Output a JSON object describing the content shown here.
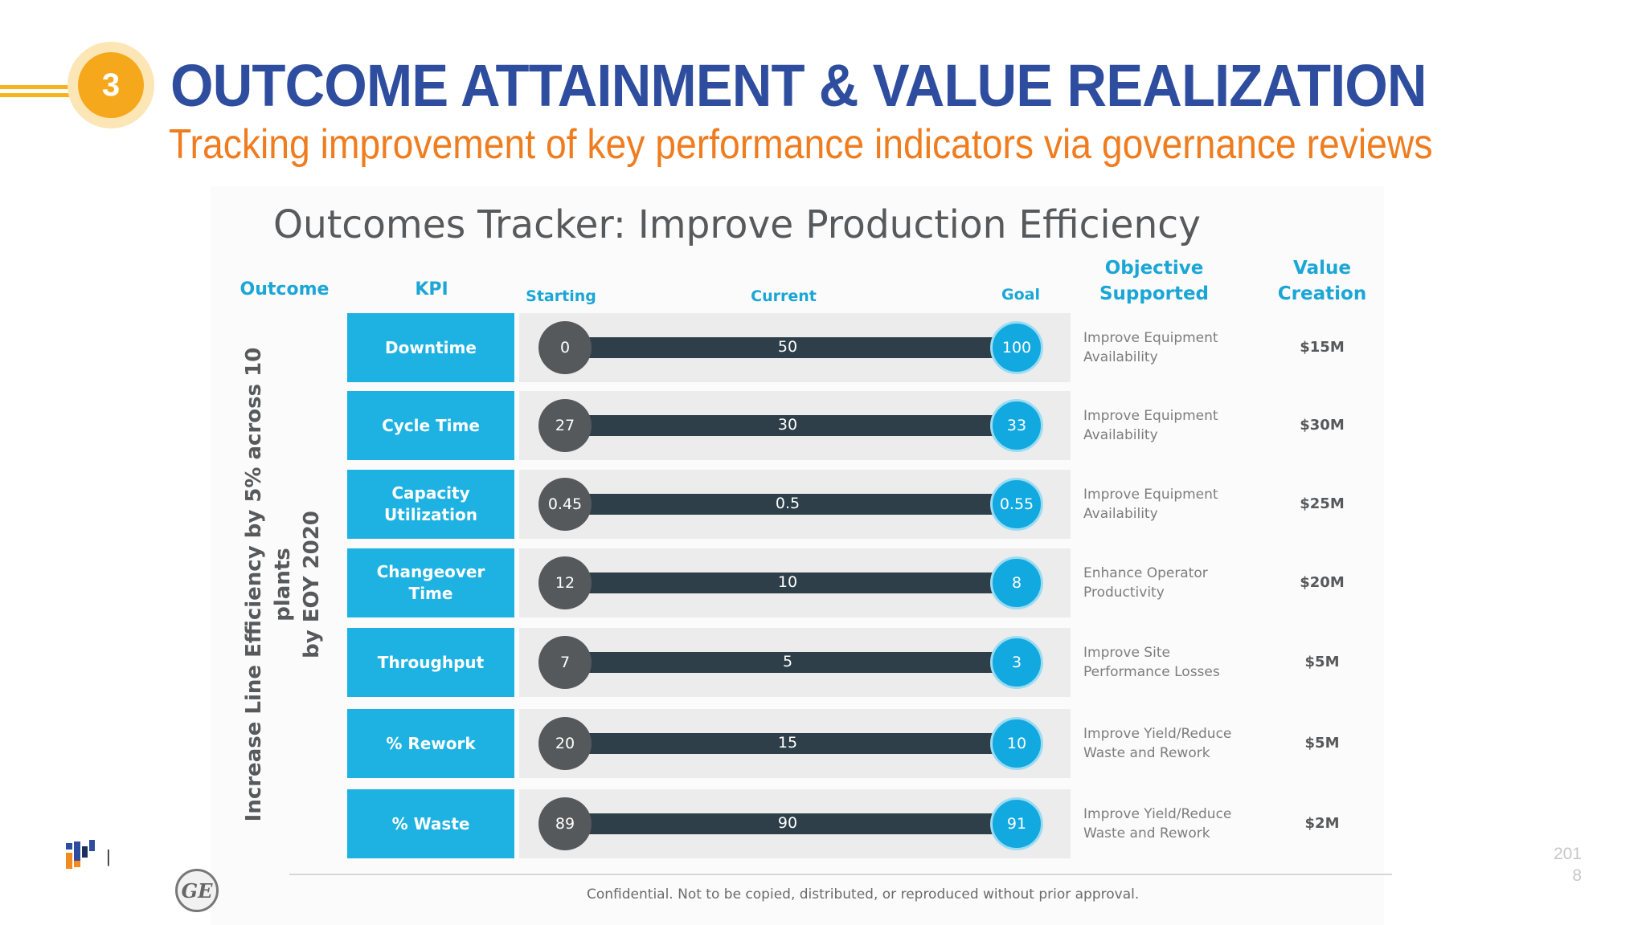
{
  "header": {
    "badge_number": "3",
    "title": "OUTCOME ATTAINMENT & VALUE REALIZATION",
    "subtitle": "Tracking improvement of key performance indicators via governance reviews",
    "accent_color": "#f6a81c",
    "title_color": "#2e4d9e",
    "subtitle_color": "#ef7d1f"
  },
  "tracker": {
    "title": "Outcomes Tracker:  Improve Production Efficiency",
    "columns": {
      "outcome": "Outcome",
      "kpi": "KPI",
      "starting": "Starting",
      "current": "Current",
      "goal": "Goal",
      "objective_line1": "Objective",
      "objective_line2": "Supported",
      "value_line1": "Value",
      "value_line2": "Creation"
    },
    "outcome_line1": "Increase Line Efficiency by 5% across 10 plants",
    "outcome_line2": "by EOY 2020",
    "rows": [
      {
        "kpi_line1": "Downtime",
        "kpi_line2": "",
        "starting": "0",
        "current": "50",
        "goal": "100",
        "objective_line1": "Improve Equipment",
        "objective_line2": "Availability",
        "value": "$15M"
      },
      {
        "kpi_line1": "Cycle Time",
        "kpi_line2": "",
        "starting": "27",
        "current": "30",
        "goal": "33",
        "objective_line1": "Improve Equipment",
        "objective_line2": "Availability",
        "value": "$30M"
      },
      {
        "kpi_line1": "Capacity",
        "kpi_line2": "Utilization",
        "starting": "0.45",
        "current": "0.5",
        "goal": "0.55",
        "objective_line1": "Improve Equipment",
        "objective_line2": "Availability",
        "value": "$25M"
      },
      {
        "kpi_line1": "Changeover",
        "kpi_line2": "Time",
        "starting": "12",
        "current": "10",
        "goal": "8",
        "objective_line1": "Enhance Operator",
        "objective_line2": "Productivity",
        "value": "$20M"
      },
      {
        "kpi_line1": "Throughput",
        "kpi_line2": "",
        "starting": "7",
        "current": "5",
        "goal": "3",
        "objective_line1": "Improve Site",
        "objective_line2": "Performance Losses",
        "value": "$5M"
      },
      {
        "kpi_line1": "% Rework",
        "kpi_line2": "",
        "starting": "20",
        "current": "15",
        "goal": "10",
        "objective_line1": "Improve Yield/Reduce",
        "objective_line2": "Waste and Rework",
        "value": "$5M"
      },
      {
        "kpi_line1": "% Waste",
        "kpi_line2": "",
        "starting": "89",
        "current": "90",
        "goal": "91",
        "objective_line1": "Improve Yield/Reduce",
        "objective_line2": "Waste and Rework",
        "value": "$2M"
      }
    ],
    "footer": "Confidential. Not to be copied, distributed, or reproduced without prior approval.",
    "ge_logo_text": "GE",
    "kpi_color": "#1eb2e3",
    "goal_color": "#12a8e0",
    "bar_color": "#2e3f4a"
  },
  "page_number_line1": "201",
  "page_number_line2": "8",
  "corp_separator": "|"
}
